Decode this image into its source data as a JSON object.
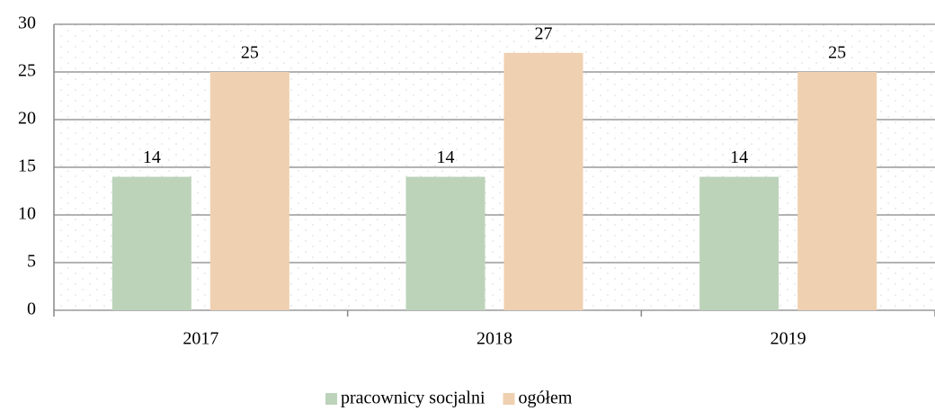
{
  "chart_data": {
    "type": "bar",
    "categories": [
      "2017",
      "2018",
      "2019"
    ],
    "series": [
      {
        "name": "pracownicy socjalni",
        "color": "#bcd3ba",
        "values": [
          14,
          14,
          14
        ]
      },
      {
        "name": "ogółem",
        "color": "#efd0b0",
        "values": [
          25,
          27,
          25
        ]
      }
    ],
    "ylim": [
      0,
      30
    ],
    "yticks": [
      0,
      5,
      10,
      15,
      20,
      25,
      30
    ],
    "grid": true,
    "legend": "bottom"
  }
}
